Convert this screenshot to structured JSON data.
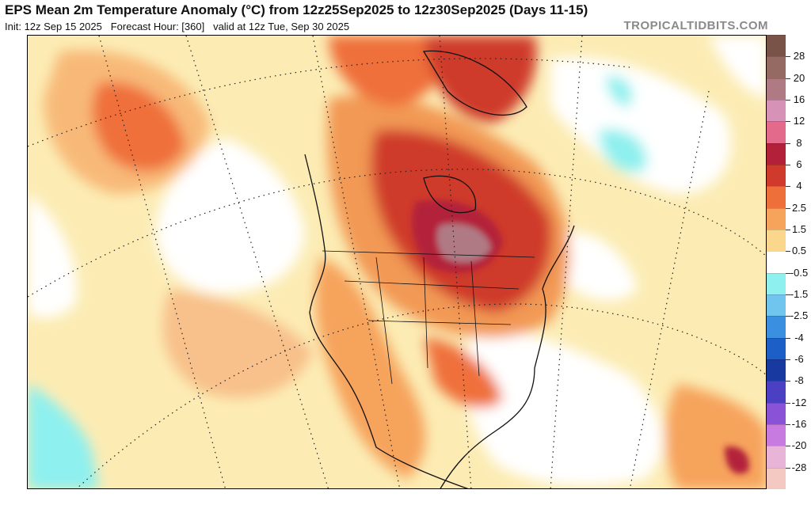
{
  "header": {
    "title": "EPS Mean 2m Temperature Anomaly (°C) from 12z25Sep2025 to 12z30Sep2025 (Days 11-15)",
    "init": "Init: 12z Sep 15 2025",
    "forecast_hour": "Forecast Hour: [360]",
    "valid": "valid at 12z Tue, Sep 30 2025",
    "brand": "TROPICALTIDBITS.COM"
  },
  "map": {
    "region": "North America",
    "field": "2m temperature anomaly",
    "units": "°C"
  },
  "colorbar": {
    "labels": [
      "28",
      "20",
      "16",
      "12",
      "8",
      "6",
      "4",
      "2.5",
      "1.5",
      "0.5",
      "-0.5",
      "-1.5",
      "-2.5",
      "-4",
      "-6",
      "-8",
      "-12",
      "-16",
      "-20",
      "-28"
    ],
    "colors": [
      "#7a5348",
      "#946a62",
      "#b07a85",
      "#d792b8",
      "#e46a8c",
      "#b3203a",
      "#cf3a2c",
      "#ef6f3a",
      "#f6a35c",
      "#fbd78e",
      "#ffffff",
      "#8ef0ef",
      "#6fc5ee",
      "#3b8fe0",
      "#1c5fc6",
      "#183aa0",
      "#4b3fc4",
      "#8a52d6",
      "#c77ae0",
      "#e8b5d8",
      "#f4c9c2"
    ]
  }
}
